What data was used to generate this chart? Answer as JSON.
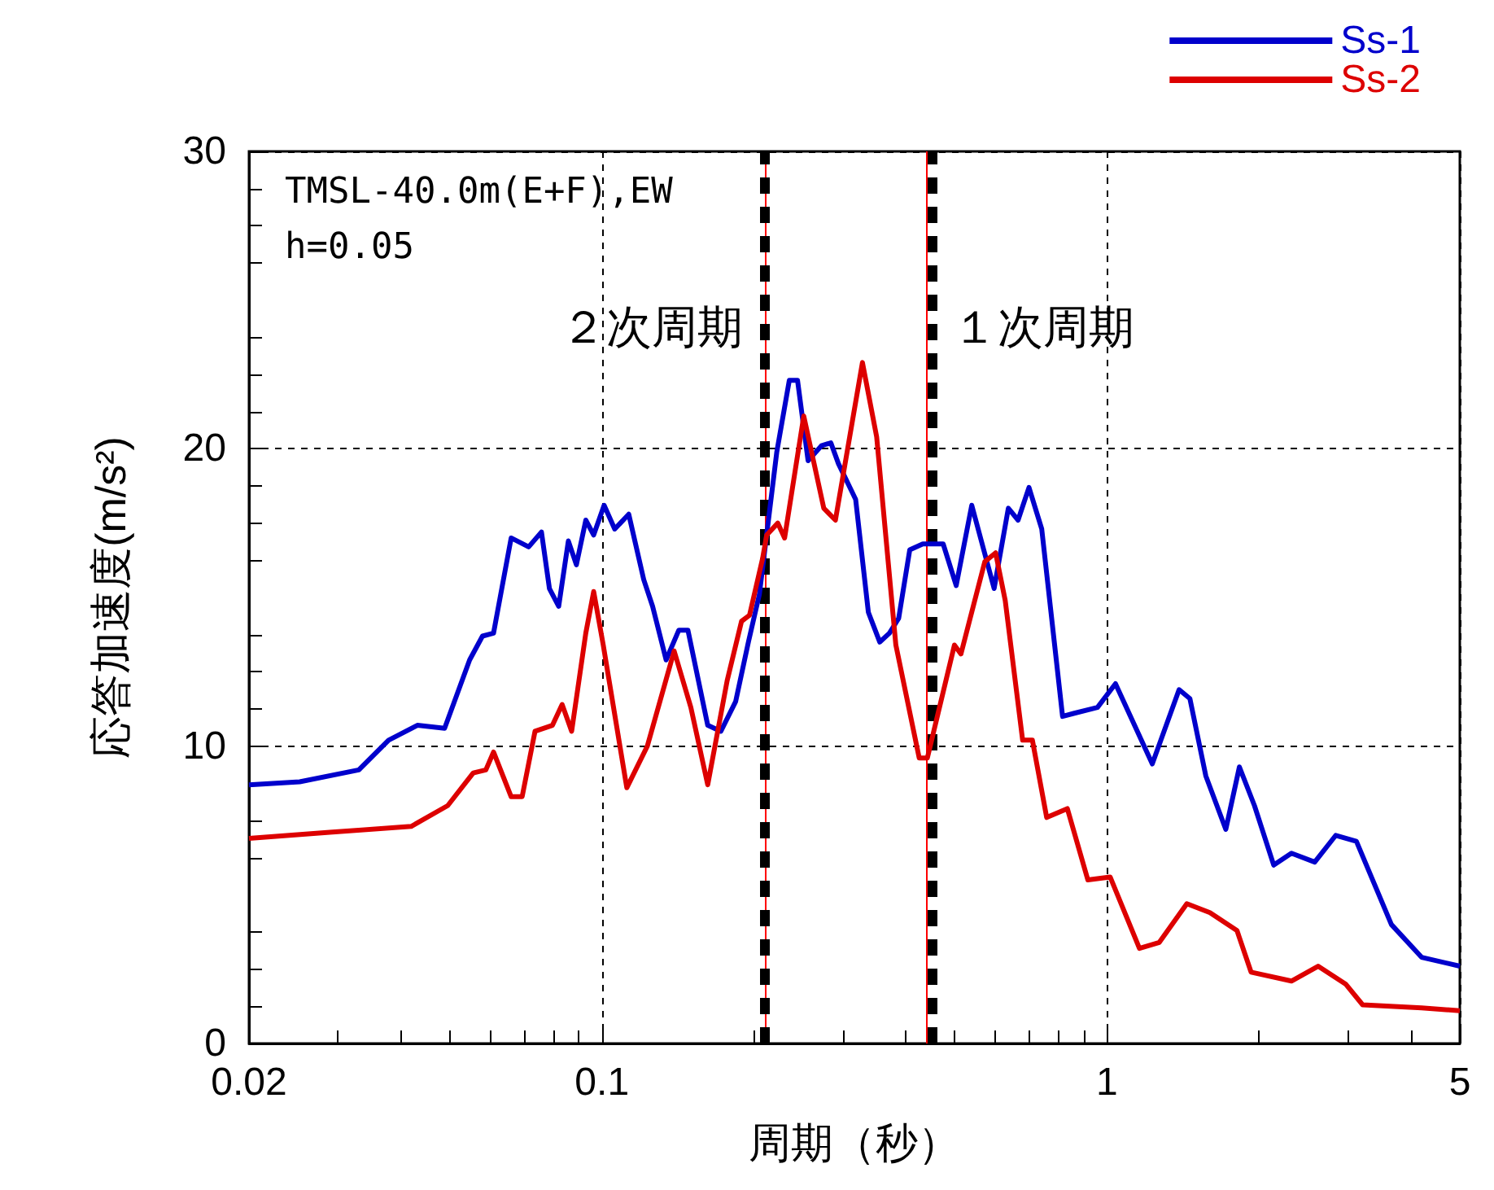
{
  "chart_data": {
    "type": "line",
    "xlabel": "周期（秒）",
    "ylabel": "応答加速度(m/s²)",
    "log": "x",
    "xlim": [
      0.02,
      5
    ],
    "xticks": [
      0.02,
      0.1,
      1,
      5
    ],
    "ylim": [
      0,
      30
    ],
    "yticks": [
      0,
      10,
      20,
      30
    ],
    "grid": true,
    "legend": "top right",
    "marker": "none",
    "line_style": "solid",
    "series": [
      {
        "name": "Ss-1",
        "color": "#0000cc",
        "x": [
          0.02,
          0.0252,
          0.033,
          0.0378,
          0.0431,
          0.0488,
          0.0547,
          0.058,
          0.061,
          0.0661,
          0.0716,
          0.0759,
          0.0787,
          0.0821,
          0.0858,
          0.089,
          0.0929,
          0.0963,
          0.101,
          0.106,
          0.113,
          0.121,
          0.126,
          0.134,
          0.142,
          0.148,
          0.162,
          0.172,
          0.184,
          0.195,
          0.205,
          0.222,
          0.235,
          0.244,
          0.256,
          0.272,
          0.284,
          0.294,
          0.318,
          0.337,
          0.355,
          0.371,
          0.387,
          0.407,
          0.432,
          0.474,
          0.503,
          0.54,
          0.598,
          0.638,
          0.667,
          0.701,
          0.743,
          0.817,
          0.859,
          0.958,
          1.04,
          1.23,
          1.39,
          1.46,
          1.57,
          1.72,
          1.83,
          1.96,
          2.14,
          2.32,
          2.58,
          2.84,
          3.12,
          3.66,
          4.2,
          5
        ],
        "values": [
          8.7,
          8.8,
          9.2,
          10.2,
          10.7,
          10.6,
          12.9,
          13.7,
          13.8,
          17.0,
          16.7,
          17.2,
          15.3,
          14.7,
          16.9,
          16.1,
          17.6,
          17.1,
          18.1,
          17.3,
          17.8,
          15.6,
          14.7,
          12.9,
          13.9,
          13.9,
          10.7,
          10.5,
          11.5,
          13.5,
          15.1,
          19.9,
          22.3,
          22.3,
          19.6,
          20.1,
          20.2,
          19.5,
          18.3,
          14.5,
          13.5,
          13.8,
          14.3,
          16.6,
          16.8,
          16.8,
          15.4,
          18.1,
          15.3,
          18.0,
          17.6,
          18.7,
          17.3,
          11.0,
          11.1,
          11.3,
          12.1,
          9.4,
          11.9,
          11.6,
          9.0,
          7.2,
          9.3,
          8.0,
          6.0,
          6.4,
          6.1,
          7.0,
          6.8,
          4.0,
          2.9,
          2.6
        ]
      },
      {
        "name": "Ss-2",
        "color": "#dd0000",
        "x": [
          0.02,
          0.0289,
          0.0419,
          0.0495,
          0.0556,
          0.0589,
          0.061,
          0.0661,
          0.0695,
          0.0737,
          0.0798,
          0.0834,
          0.0871,
          0.0929,
          0.0963,
          0.1006,
          0.112,
          0.123,
          0.139,
          0.15,
          0.162,
          0.177,
          0.189,
          0.196,
          0.208,
          0.212,
          0.223,
          0.23,
          0.251,
          0.275,
          0.29,
          0.328,
          0.35,
          0.382,
          0.425,
          0.441,
          0.499,
          0.514,
          0.573,
          0.602,
          0.629,
          0.681,
          0.712,
          0.76,
          0.835,
          0.917,
          1.015,
          1.16,
          1.27,
          1.44,
          1.6,
          1.81,
          1.93,
          2.32,
          2.62,
          2.97,
          3.21,
          4.2,
          5
        ],
        "values": [
          6.9,
          7.1,
          7.3,
          8.0,
          9.1,
          9.2,
          9.8,
          8.3,
          8.3,
          10.5,
          10.7,
          11.4,
          10.5,
          13.8,
          15.2,
          13.4,
          8.6,
          10.0,
          13.2,
          11.3,
          8.7,
          12.2,
          14.2,
          14.4,
          16.3,
          17.1,
          17.5,
          17.0,
          21.1,
          18.0,
          17.6,
          22.9,
          20.4,
          13.4,
          9.6,
          9.6,
          13.4,
          13.1,
          16.2,
          16.5,
          14.9,
          10.2,
          10.2,
          7.6,
          7.9,
          5.5,
          5.6,
          3.2,
          3.4,
          4.7,
          4.4,
          3.8,
          2.4,
          2.1,
          2.6,
          2.0,
          1.3,
          1.2,
          1.1
        ]
      }
    ],
    "ref_lines": [
      {
        "axis": "x",
        "value": 0.206,
        "color": "#ff0000",
        "line_style": "solid"
      },
      {
        "axis": "x",
        "value": 0.211,
        "color": "#000000",
        "line_style": "dashed",
        "label": "２次周期"
      },
      {
        "axis": "x",
        "value": 0.438,
        "color": "#ff0000",
        "line_style": "solid"
      },
      {
        "axis": "x",
        "value": 0.445,
        "color": "#000000",
        "line_style": "dashed",
        "label": "１次周期"
      }
    ],
    "annotations": [
      "TMSL-40.0m(E+F),EW",
      "h=0.05"
    ]
  }
}
